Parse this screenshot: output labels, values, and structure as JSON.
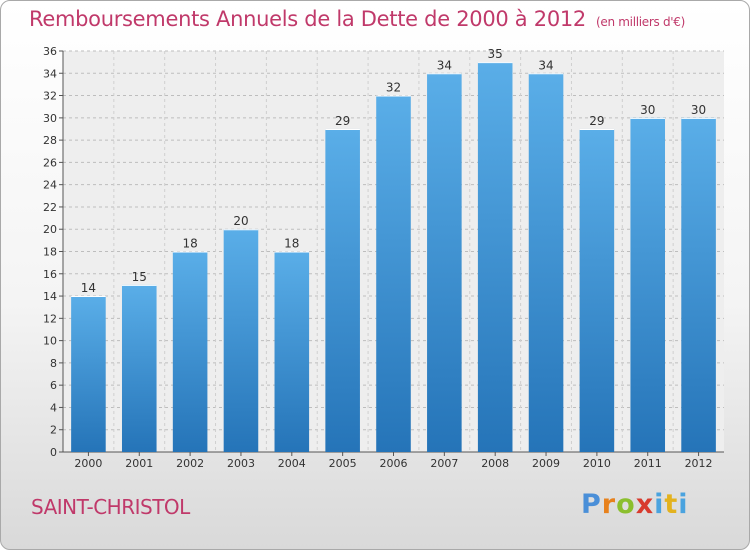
{
  "chart_data": {
    "type": "bar",
    "title": "Remboursements Annuels de la Dette de 2000 à 2012",
    "unit": "(en milliers d'€)",
    "categories": [
      "2000",
      "2001",
      "2002",
      "2003",
      "2004",
      "2005",
      "2006",
      "2007",
      "2008",
      "2009",
      "2010",
      "2011",
      "2012"
    ],
    "values": [
      14,
      15,
      18,
      20,
      18,
      29,
      32,
      34,
      35,
      34,
      29,
      30,
      30
    ],
    "ylim": [
      0,
      36
    ],
    "ytick_step": 2,
    "grid": true,
    "bar_color_top": "#5aaee8",
    "bar_color_bottom": "#2574b8"
  },
  "commune": "SAINT-CHRISTOL",
  "logo": {
    "text": "Proxiti"
  }
}
